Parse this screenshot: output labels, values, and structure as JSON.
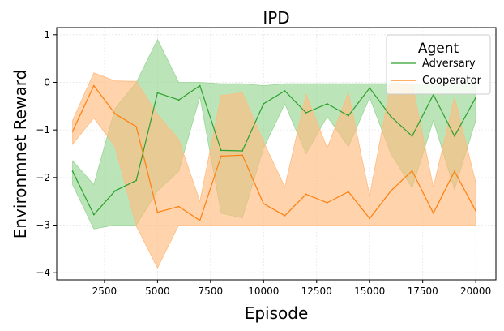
{
  "chart_data": {
    "type": "line",
    "title": "IPD",
    "xlabel": "Episode",
    "ylabel": "Environmnet Reward",
    "xlim": [
      250,
      20950
    ],
    "ylim": [
      -4.15,
      1.15
    ],
    "xticks": [
      2500,
      5000,
      7500,
      10000,
      12500,
      15000,
      17500,
      20000
    ],
    "yticks": [
      -4,
      -3,
      -2,
      -1,
      0,
      1
    ],
    "grid": true,
    "legend": {
      "title": "Agent",
      "position": "top-right"
    },
    "x": [
      1000,
      2000,
      3000,
      4000,
      5000,
      6000,
      7000,
      8000,
      9000,
      10000,
      11000,
      12000,
      13000,
      14000,
      15000,
      16000,
      17000,
      18000,
      19000,
      20000
    ],
    "series": [
      {
        "name": "Adversary",
        "color": "#2ca02c",
        "band_color": "#98d594",
        "values": [
          -1.87,
          -2.78,
          -2.28,
          -2.06,
          -0.22,
          -0.37,
          -0.07,
          -1.43,
          -1.44,
          -0.45,
          -0.18,
          -0.64,
          -0.45,
          -0.7,
          -0.12,
          -0.72,
          -1.13,
          -0.26,
          -1.13,
          -0.32
        ],
        "upper": [
          -1.65,
          -2.15,
          -0.55,
          0.0,
          0.9,
          0.0,
          0.0,
          -0.03,
          -0.03,
          -0.07,
          -0.03,
          -0.03,
          -0.03,
          -0.03,
          -0.03,
          -0.03,
          -0.03,
          -0.03,
          -0.03,
          -0.03
        ],
        "lower": [
          -2.15,
          -3.08,
          -3.0,
          -3.0,
          -2.28,
          -1.87,
          -0.3,
          -2.75,
          -2.85,
          -1.38,
          -0.45,
          -1.5,
          -0.72,
          -1.35,
          -0.32,
          -1.5,
          -2.22,
          -0.8,
          -2.25,
          -0.8
        ]
      },
      {
        "name": "Cooperator",
        "color": "#ff7f0e",
        "band_color": "#ffbb80",
        "values": [
          -1.03,
          -0.07,
          -0.66,
          -0.93,
          -2.73,
          -2.61,
          -2.9,
          -1.55,
          -1.53,
          -2.55,
          -2.8,
          -2.35,
          -2.53,
          -2.3,
          -2.86,
          -2.28,
          -1.86,
          -2.75,
          -1.87,
          -2.7
        ],
        "upper": [
          -0.8,
          0.2,
          0.03,
          0.02,
          -0.68,
          -1.2,
          -2.5,
          -0.28,
          -0.22,
          -1.25,
          -2.2,
          -0.25,
          -1.38,
          -0.22,
          -2.38,
          -0.02,
          -0.03,
          -2.2,
          -0.32,
          -2.1
        ],
        "lower": [
          -1.3,
          -0.75,
          -1.35,
          -3.02,
          -3.9,
          -3.0,
          -3.0,
          -3.0,
          -3.0,
          -3.0,
          -3.0,
          -3.0,
          -3.0,
          -3.0,
          -3.0,
          -3.0,
          -3.0,
          -3.0,
          -3.0,
          -3.0
        ]
      }
    ]
  }
}
